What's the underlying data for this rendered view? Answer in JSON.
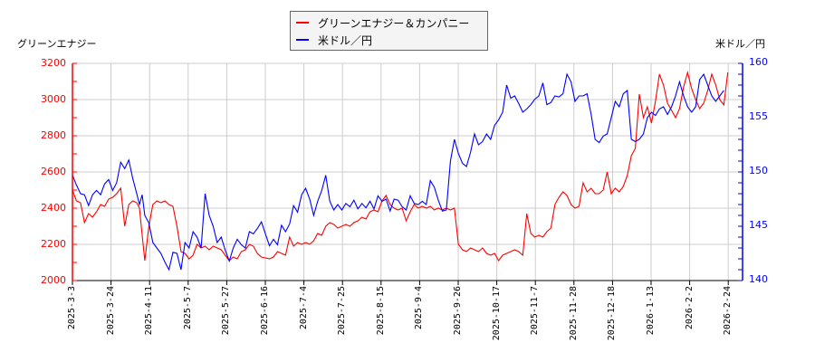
{
  "legend": {
    "items": [
      {
        "label": "グリーンエナジー＆カンパニー",
        "color": "#ff0000"
      },
      {
        "label": "米ドル／円",
        "color": "#0000ff"
      }
    ]
  },
  "left_axis": {
    "title": "グリーンエナジー",
    "color": "#ff0000",
    "min": 2000,
    "max": 3200,
    "ticks": [
      "2000",
      "2200",
      "2400",
      "2600",
      "2800",
      "3000",
      "3200"
    ]
  },
  "right_axis": {
    "title": "米ドル／円",
    "color": "#0000ff",
    "min": 140,
    "max": 160,
    "ticks": [
      "140",
      "145",
      "150",
      "155",
      "160"
    ]
  },
  "x_axis": {
    "ticks": [
      "2025-3-3",
      "2025-3-24",
      "2025-4-11",
      "2025-5-7",
      "2025-5-27",
      "2025-6-16",
      "2025-7-4",
      "2025-7-25",
      "2025-8-15",
      "2025-9-4",
      "2025-9-26",
      "2025-10-17",
      "2025-11-7",
      "2025-11-28",
      "2025-12-18",
      "2026-1-13",
      "2026-2-2",
      "2026-2-24"
    ]
  },
  "chart_data": {
    "type": "line",
    "title": "",
    "xlabel": "",
    "ylabel": "グリーンエナジー",
    "ylabel_right": "米ドル／円",
    "ylim": [
      2000,
      3200
    ],
    "ylim_right": [
      140,
      160
    ],
    "grid": true,
    "legend_position": "top-center",
    "categories": [
      "2025-3-3",
      "2025-3-24",
      "2025-4-11",
      "2025-5-7",
      "2025-5-27",
      "2025-6-16",
      "2025-7-4",
      "2025-7-25",
      "2025-8-15",
      "2025-9-4",
      "2025-9-26",
      "2025-10-17",
      "2025-11-7",
      "2025-11-28",
      "2025-12-18",
      "2026-1-13",
      "2026-2-2",
      "2026-2-24"
    ],
    "series": [
      {
        "name": "グリーンエナジー＆カンパニー",
        "axis": "left",
        "color": "#ff0000",
        "x_frac": [
          0.0,
          0.006,
          0.012,
          0.018,
          0.024,
          0.03,
          0.036,
          0.042,
          0.048,
          0.054,
          0.06,
          0.066,
          0.072,
          0.078,
          0.084,
          0.09,
          0.096,
          0.1,
          0.104,
          0.108,
          0.114,
          0.12,
          0.126,
          0.132,
          0.138,
          0.144,
          0.15,
          0.156,
          0.162,
          0.168,
          0.174,
          0.18,
          0.186,
          0.192,
          0.198,
          0.204,
          0.21,
          0.216,
          0.222,
          0.228,
          0.234,
          0.24,
          0.246,
          0.252,
          0.258,
          0.264,
          0.27,
          0.276,
          0.282,
          0.288,
          0.294,
          0.3,
          0.306,
          0.312,
          0.318,
          0.324,
          0.33,
          0.336,
          0.342,
          0.348,
          0.354,
          0.36,
          0.366,
          0.372,
          0.378,
          0.384,
          0.39,
          0.396,
          0.402,
          0.408,
          0.414,
          0.42,
          0.426,
          0.432,
          0.438,
          0.444,
          0.45,
          0.456,
          0.462,
          0.468,
          0.474,
          0.48,
          0.486,
          0.492,
          0.498,
          0.504,
          0.51,
          0.516,
          0.522,
          0.528,
          0.534,
          0.54,
          0.546,
          0.552,
          0.558,
          0.564,
          0.57,
          0.576,
          0.582,
          0.588,
          0.594,
          0.6,
          0.606,
          0.612,
          0.618,
          0.624,
          0.63,
          0.636,
          0.642,
          0.648,
          0.654,
          0.66,
          0.666,
          0.672,
          0.678,
          0.684,
          0.69,
          0.696,
          0.702,
          0.708,
          0.714,
          0.72,
          0.726,
          0.732,
          0.738,
          0.744,
          0.75,
          0.756,
          0.762,
          0.768,
          0.774,
          0.78,
          0.786,
          0.792,
          0.798,
          0.804,
          0.81,
          0.816,
          0.822,
          0.828,
          0.834,
          0.84,
          0.846,
          0.852,
          0.858,
          0.864,
          0.87,
          0.876,
          0.882,
          0.888,
          0.894,
          0.9,
          0.906,
          0.912,
          0.918,
          0.924,
          0.93,
          0.936,
          0.942,
          0.948,
          0.954,
          0.96,
          0.966,
          0.972,
          0.978,
          0.984,
          0.99,
          0.996,
          1.0
        ],
        "values": [
          2500,
          2440,
          2430,
          2320,
          2370,
          2350,
          2380,
          2420,
          2410,
          2450,
          2460,
          2480,
          2510,
          2300,
          2420,
          2440,
          2430,
          2400,
          2250,
          2110,
          2300,
          2420,
          2440,
          2430,
          2440,
          2420,
          2410,
          2300,
          2160,
          2150,
          2120,
          2140,
          2200,
          2180,
          2190,
          2170,
          2190,
          2180,
          2170,
          2140,
          2110,
          2130,
          2120,
          2160,
          2170,
          2200,
          2190,
          2150,
          2130,
          2125,
          2120,
          2130,
          2160,
          2150,
          2140,
          2240,
          2190,
          2210,
          2200,
          2210,
          2200,
          2220,
          2260,
          2250,
          2300,
          2320,
          2310,
          2290,
          2300,
          2310,
          2300,
          2320,
          2330,
          2350,
          2340,
          2380,
          2390,
          2380,
          2440,
          2470,
          2420,
          2400,
          2390,
          2400,
          2330,
          2380,
          2420,
          2400,
          2410,
          2400,
          2410,
          2390,
          2400,
          2390,
          2400,
          2390,
          2400,
          2200,
          2170,
          2160,
          2180,
          2170,
          2160,
          2180,
          2150,
          2140,
          2150,
          2110,
          2140,
          2150,
          2160,
          2170,
          2160,
          2140,
          2370,
          2260,
          2240,
          2250,
          2240,
          2270,
          2290,
          2420,
          2460,
          2490,
          2470,
          2420,
          2400,
          2410,
          2540,
          2490,
          2510,
          2480,
          2480,
          2500,
          2600,
          2480,
          2510,
          2490,
          2520,
          2580,
          2690,
          2730,
          3030,
          2900,
          2960,
          2870,
          2990,
          3140,
          3080,
          2980,
          2940,
          2900,
          2950,
          3070,
          3150,
          3060,
          3000,
          2950,
          2980,
          3050,
          3140,
          3080,
          3000,
          2970,
          3150
        ]
      },
      {
        "name": "米ドル／円",
        "axis": "right",
        "color": "#0000ff",
        "x_frac": [
          0.0,
          0.006,
          0.012,
          0.018,
          0.024,
          0.03,
          0.036,
          0.042,
          0.048,
          0.054,
          0.06,
          0.066,
          0.072,
          0.078,
          0.084,
          0.09,
          0.096,
          0.1,
          0.104,
          0.108,
          0.114,
          0.12,
          0.126,
          0.132,
          0.138,
          0.144,
          0.15,
          0.156,
          0.162,
          0.168,
          0.174,
          0.18,
          0.186,
          0.192,
          0.198,
          0.204,
          0.21,
          0.216,
          0.222,
          0.228,
          0.234,
          0.24,
          0.246,
          0.252,
          0.258,
          0.264,
          0.27,
          0.276,
          0.282,
          0.288,
          0.294,
          0.3,
          0.306,
          0.312,
          0.318,
          0.324,
          0.33,
          0.336,
          0.342,
          0.348,
          0.354,
          0.36,
          0.366,
          0.372,
          0.378,
          0.384,
          0.39,
          0.396,
          0.402,
          0.408,
          0.414,
          0.42,
          0.426,
          0.432,
          0.438,
          0.444,
          0.45,
          0.456,
          0.462,
          0.468,
          0.474,
          0.48,
          0.486,
          0.492,
          0.498,
          0.504,
          0.51,
          0.516,
          0.522,
          0.528,
          0.534,
          0.54,
          0.546,
          0.552,
          0.558,
          0.564,
          0.57,
          0.576,
          0.582,
          0.588,
          0.594,
          0.6,
          0.606,
          0.612,
          0.618,
          0.624,
          0.63,
          0.636,
          0.642,
          0.648,
          0.654,
          0.66,
          0.666,
          0.672,
          0.678,
          0.684,
          0.69,
          0.696,
          0.702,
          0.708,
          0.714,
          0.72,
          0.726,
          0.732,
          0.738,
          0.744,
          0.75,
          0.756,
          0.762,
          0.768,
          0.774,
          0.78,
          0.786,
          0.792,
          0.798,
          0.804,
          0.81,
          0.816,
          0.822,
          0.828,
          0.834,
          0.84,
          0.846,
          0.852,
          0.858,
          0.864,
          0.87,
          0.876,
          0.882,
          0.888,
          0.894,
          0.9,
          0.906,
          0.912,
          0.918,
          0.924,
          0.93,
          0.936,
          0.942,
          0.948,
          0.954,
          0.96,
          0.966,
          0.972,
          0.978,
          0.984,
          0.99,
          0.996,
          1.0
        ],
        "values": [
          149.7,
          148.8,
          148.0,
          147.9,
          146.9,
          147.9,
          148.3,
          147.9,
          148.9,
          149.3,
          148.3,
          149.0,
          150.9,
          150.3,
          151.1,
          149.4,
          148.0,
          147.0,
          147.9,
          146.0,
          145.3,
          143.5,
          143.0,
          142.5,
          141.7,
          141.0,
          142.6,
          142.5,
          141.0,
          143.5,
          143.0,
          144.5,
          144.0,
          143.0,
          148.0,
          146.0,
          145.0,
          143.5,
          144.0,
          142.8,
          141.8,
          143.0,
          143.8,
          143.3,
          143.0,
          144.5,
          144.3,
          144.8,
          145.4,
          144.3,
          143.2,
          143.8,
          143.3,
          145.1,
          144.5,
          145.2,
          146.9,
          146.3,
          147.9,
          148.5,
          147.5,
          146.0,
          147.3,
          148.3,
          149.7,
          147.3,
          146.5,
          147.0,
          146.5,
          147.1,
          146.8,
          147.4,
          146.6,
          147.1,
          146.7,
          147.3,
          146.6,
          147.8,
          147.3,
          147.5,
          146.4,
          147.5,
          147.4,
          146.8,
          146.5,
          147.8,
          147.1,
          147.0,
          147.3,
          147.0,
          149.2,
          148.6,
          147.4,
          146.4,
          146.5,
          151.0,
          153.0,
          151.7,
          150.8,
          150.5,
          151.8,
          153.5,
          152.5,
          152.8,
          153.5,
          153.0,
          154.3,
          154.8,
          155.5,
          158.0,
          156.8,
          157.0,
          156.3,
          155.5,
          155.8,
          156.2,
          156.7,
          157.0,
          158.2,
          156.2,
          156.4,
          157.0,
          156.9,
          157.2,
          159.0,
          158.3,
          156.5,
          157.0,
          157.0,
          157.2,
          155.3,
          153.0,
          152.7,
          153.3,
          153.5,
          155.0,
          156.5,
          156.0,
          157.2,
          157.5,
          153.0,
          152.8,
          153.0,
          153.5,
          155.0,
          155.5,
          155.2,
          155.8,
          156.0,
          155.3,
          156.0,
          157.0,
          158.3,
          157.0,
          156.0,
          155.5,
          156.0,
          158.5,
          159.0,
          158.0,
          157.0,
          156.5,
          157.0,
          157.5
        ]
      }
    ]
  }
}
